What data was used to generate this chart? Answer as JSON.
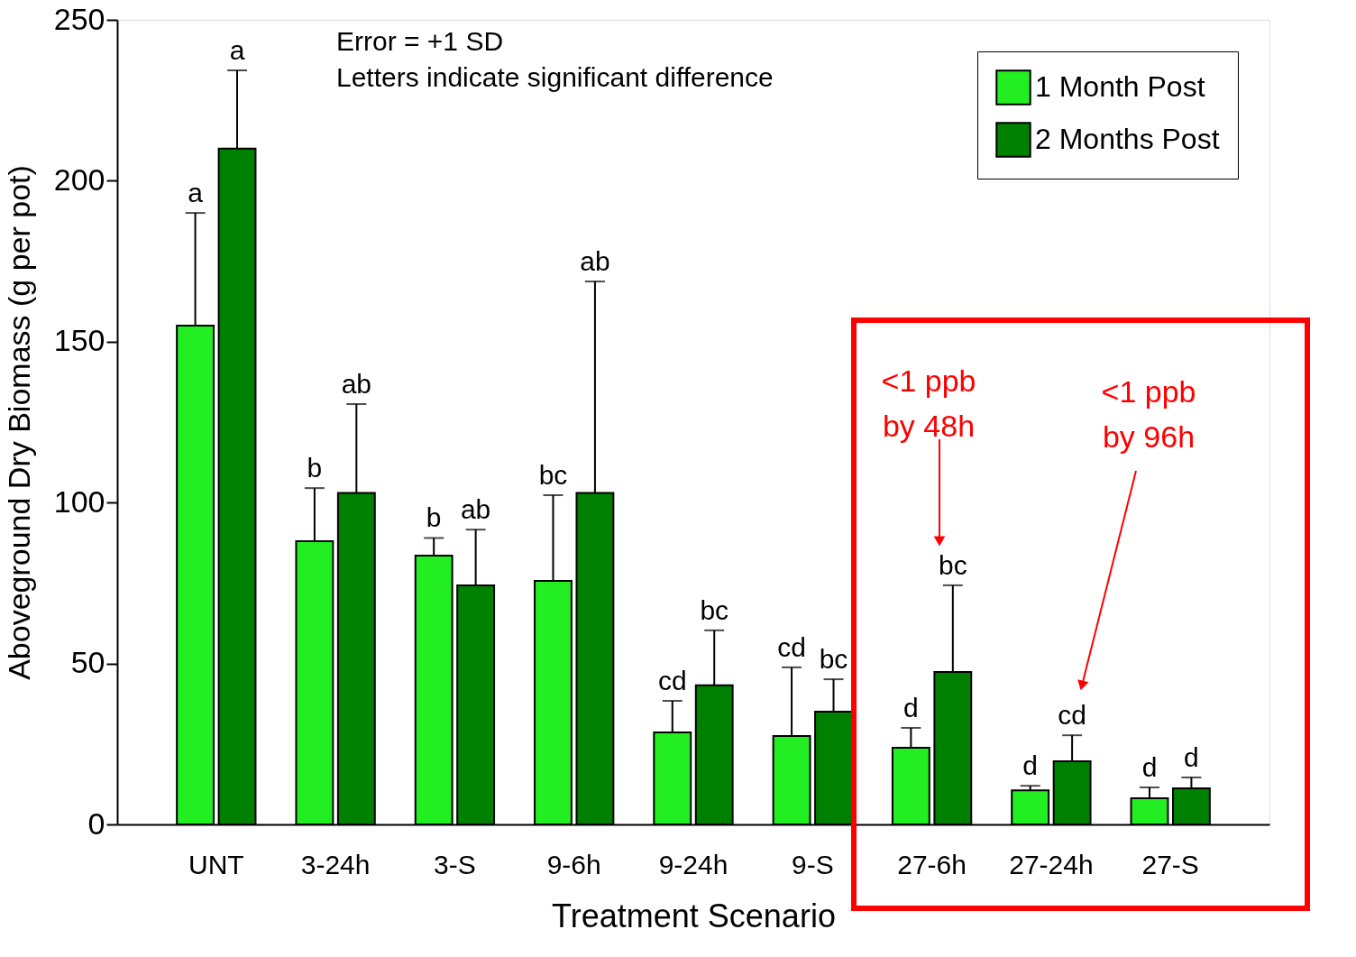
{
  "chart_data": {
    "type": "bar",
    "categories": [
      "UNT",
      "3-24h",
      "3-S",
      "9-6h",
      "9-24h",
      "9-S",
      "27-6h",
      "27-24h",
      "27-S"
    ],
    "xlabel": "Treatment Scenario",
    "ylabel": "Aboveground Dry Biomass (g per pot)",
    "ylim": [
      0,
      250
    ],
    "yticks": [
      0,
      50,
      100,
      150,
      200,
      250
    ],
    "grid": false,
    "legend": "top right",
    "series": [
      {
        "name": "1 Month Post",
        "color": "#22ee22",
        "values": [
          155,
          88,
          83.5,
          75.7,
          28.6,
          27.5,
          23.8,
          10.6,
          8.1
        ],
        "errors": [
          [
            155,
            190
          ],
          [
            88,
            104.5
          ],
          [
            83.5,
            89
          ],
          [
            75.7,
            102.3
          ],
          [
            28.6,
            38.4
          ],
          [
            27.5,
            48.8
          ],
          [
            23.8,
            30
          ],
          [
            10.6,
            12
          ],
          [
            8.1,
            11.5
          ]
        ]
      },
      {
        "name": "2 Months Post",
        "color": "#008000",
        "values": [
          210,
          103,
          74.3,
          103,
          43.2,
          35,
          47.4,
          19.6,
          11.2
        ],
        "errors": [
          [
            210,
            234.3
          ],
          [
            103,
            130.6
          ],
          [
            74.3,
            91.6
          ],
          [
            103,
            168.7
          ],
          [
            43.2,
            60.3
          ],
          [
            35,
            45.1
          ],
          [
            47.4,
            74.3
          ],
          [
            19.6,
            27.7
          ],
          [
            11.2,
            14.6
          ]
        ]
      }
    ],
    "annotations": [
      "Error = +1 SD",
      "Letters indicate significant difference",
      "<1 ppb\nby 48h",
      "<1 ppb\nby 96h",
      "a",
      "a",
      "b",
      "ab",
      "b",
      "ab",
      "bc",
      "ab",
      "cd",
      "bc",
      "cd",
      "bc",
      "d",
      "bc",
      "d",
      "cd",
      "d",
      "d"
    ]
  }
}
